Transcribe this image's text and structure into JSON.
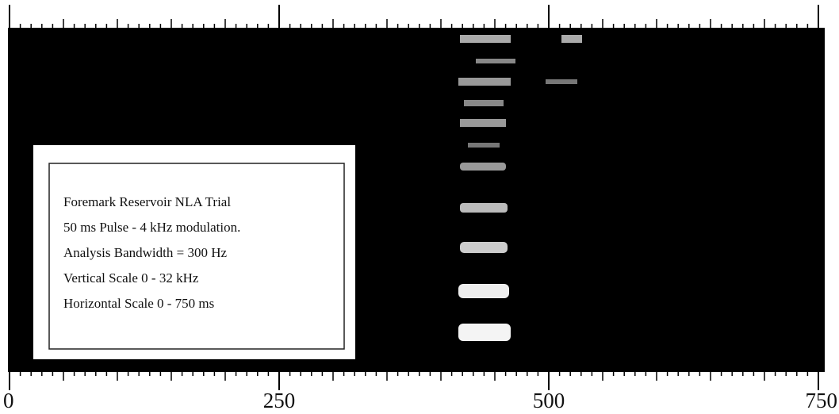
{
  "chart_data": {
    "type": "spectrogram",
    "xlim": [
      0,
      750
    ],
    "xticks": [
      0,
      250,
      500,
      750
    ],
    "xminorticks": [
      10,
      20,
      30,
      40,
      50,
      60,
      70,
      80,
      90,
      100,
      110,
      120,
      130,
      140,
      150,
      160,
      170,
      180,
      190,
      200,
      210,
      220,
      230,
      240,
      260,
      270,
      280,
      290,
      300,
      310,
      320,
      330,
      340,
      350,
      360,
      370,
      380,
      390,
      400,
      410,
      420,
      430,
      440,
      450,
      460,
      470,
      480,
      490,
      510,
      520,
      530,
      540,
      550,
      560,
      570,
      580,
      590,
      600,
      610,
      620,
      630,
      640,
      650,
      660,
      670,
      680,
      690,
      700,
      710,
      720,
      730,
      740
    ],
    "annotations": [
      "Foremark Reservoir NLA Trial",
      "50 ms Pulse - 4 kHz modulation.",
      "Analysis Bandwidth = 300 Hz",
      "Vertical Scale 0 - 32 kHz",
      "Horizontal Scale  0 - 750 ms"
    ]
  }
}
